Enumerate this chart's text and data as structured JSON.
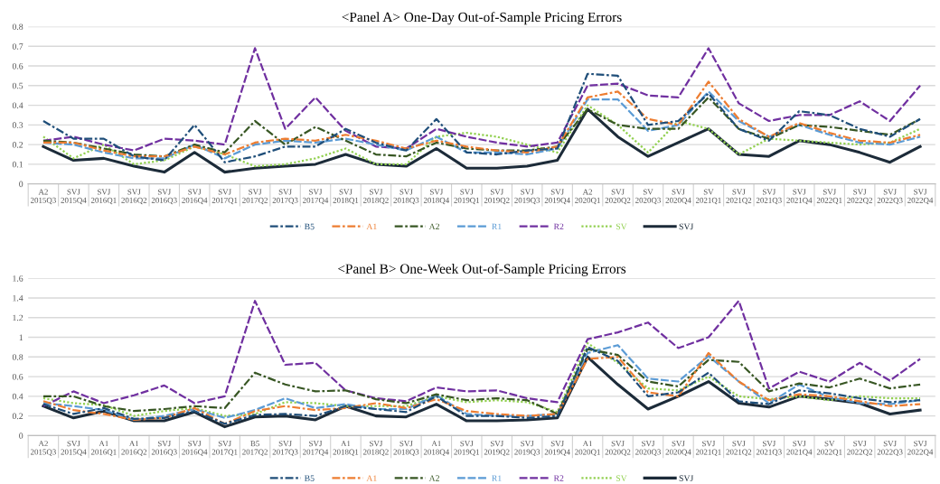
{
  "chart_data": [
    {
      "type": "line",
      "title": "<Panel A> One-Day Out-of-Sample Pricing Errors",
      "categories": [
        "A2\n2015Q3",
        "SVJ\n2015Q4",
        "SVJ\n2016Q1",
        "SVJ\n2016Q2",
        "SVJ\n2016Q3",
        "SVJ\n2016Q4",
        "SVJ\n2017Q1",
        "SVJ\n2017Q2",
        "SVJ\n2017Q3",
        "SVJ\n2017Q4",
        "SVJ\n2018Q1",
        "SVJ\n2018Q2",
        "SVJ\n2018Q3",
        "SVJ\n2018Q4",
        "SVJ\n2019Q1",
        "SVJ\n2019Q2",
        "SVJ\n2019Q3",
        "SVJ\n2019Q4",
        "A2\n2020Q1",
        "SVJ\n2020Q2",
        "SV\n2020Q3",
        "SVJ\n2020Q4",
        "SV\n2021Q1",
        "SVJ\n2021Q2",
        "SVJ\n2021Q3",
        "SVJ\n2021Q4",
        "SVJ\n2022Q1",
        "SVJ\n2022Q2",
        "SVJ\n2022Q3",
        "SVJ\n2022Q4"
      ],
      "ylim": [
        0,
        0.8
      ],
      "yticks": [
        0,
        0.1,
        0.2,
        0.3,
        0.4,
        0.5,
        0.6,
        0.7,
        0.8
      ],
      "grid": "y",
      "legend": "bottom",
      "series": [
        {
          "name": "B5",
          "color": "#1f4e79",
          "line_style": "dashdot",
          "values": [
            0.32,
            0.23,
            0.23,
            0.14,
            0.12,
            0.3,
            0.11,
            0.14,
            0.19,
            0.19,
            0.28,
            0.21,
            0.17,
            0.33,
            0.16,
            0.15,
            0.17,
            0.18,
            0.56,
            0.55,
            0.3,
            0.32,
            0.46,
            0.28,
            0.22,
            0.37,
            0.35,
            0.28,
            0.24,
            0.33
          ]
        },
        {
          "name": "A1",
          "color": "#ed7d31",
          "line_style": "dashdot",
          "values": [
            0.21,
            0.21,
            0.17,
            0.14,
            0.14,
            0.19,
            0.15,
            0.21,
            0.23,
            0.22,
            0.25,
            0.22,
            0.18,
            0.22,
            0.19,
            0.17,
            0.16,
            0.19,
            0.44,
            0.47,
            0.33,
            0.3,
            0.52,
            0.33,
            0.24,
            0.31,
            0.26,
            0.22,
            0.21,
            0.25
          ]
        },
        {
          "name": "A2",
          "color": "#375623",
          "line_style": "dashdot",
          "values": [
            0.22,
            0.21,
            0.18,
            0.15,
            0.14,
            0.2,
            0.16,
            0.32,
            0.2,
            0.29,
            0.22,
            0.15,
            0.14,
            0.21,
            0.18,
            0.17,
            0.17,
            0.19,
            0.38,
            0.3,
            0.28,
            0.28,
            0.44,
            0.28,
            0.23,
            0.3,
            0.29,
            0.27,
            0.25,
            0.33
          ]
        },
        {
          "name": "R1",
          "color": "#5b9bd5",
          "line_style": "dashed",
          "values": [
            0.21,
            0.2,
            0.16,
            0.13,
            0.13,
            0.2,
            0.13,
            0.2,
            0.22,
            0.21,
            0.23,
            0.2,
            0.17,
            0.24,
            0.16,
            0.16,
            0.15,
            0.18,
            0.43,
            0.43,
            0.27,
            0.3,
            0.47,
            0.32,
            0.24,
            0.3,
            0.25,
            0.21,
            0.2,
            0.24
          ]
        },
        {
          "name": "R2",
          "color": "#7030a0",
          "line_style": "dashed",
          "values": [
            0.22,
            0.24,
            0.2,
            0.17,
            0.23,
            0.22,
            0.2,
            0.69,
            0.28,
            0.44,
            0.27,
            0.19,
            0.18,
            0.28,
            0.24,
            0.21,
            0.19,
            0.21,
            0.5,
            0.51,
            0.45,
            0.44,
            0.69,
            0.41,
            0.32,
            0.35,
            0.35,
            0.42,
            0.32,
            0.5
          ]
        },
        {
          "name": "SV",
          "color": "#92d050",
          "line_style": "dotted",
          "values": [
            0.24,
            0.13,
            0.2,
            0.1,
            0.12,
            0.19,
            0.15,
            0.09,
            0.1,
            0.13,
            0.18,
            0.1,
            0.1,
            0.24,
            0.26,
            0.24,
            0.2,
            0.16,
            0.4,
            0.3,
            0.16,
            0.32,
            0.28,
            0.15,
            0.23,
            0.22,
            0.21,
            0.2,
            0.21,
            0.28
          ]
        },
        {
          "name": "SVJ",
          "color": "#1c2b39",
          "line_style": "solid",
          "values": [
            0.19,
            0.12,
            0.13,
            0.09,
            0.06,
            0.16,
            0.06,
            0.08,
            0.09,
            0.1,
            0.15,
            0.1,
            0.09,
            0.18,
            0.08,
            0.08,
            0.09,
            0.12,
            0.38,
            0.24,
            0.14,
            0.21,
            0.28,
            0.15,
            0.14,
            0.22,
            0.2,
            0.16,
            0.11,
            0.19
          ]
        }
      ]
    },
    {
      "type": "line",
      "title": "<Panel B> One-Week Out-of-Sample Pricing Errors",
      "categories": [
        "A2\n2015Q3",
        "SVJ\n2015Q4",
        "A1\n2016Q1",
        "A1\n2016Q2",
        "SVJ\n2016Q3",
        "SVJ\n2016Q4",
        "SVJ\n2017Q1",
        "B5\n2017Q2",
        "SVJ\n2017Q3",
        "SVJ\n2017Q4",
        "A1\n2018Q1",
        "SVJ\n2018Q2",
        "SVJ\n2018Q3",
        "A1\n2018Q4",
        "SVJ\n2019Q1",
        "SVJ\n2019Q2",
        "SVJ\n2019Q3",
        "SVJ\n2019Q4",
        "A1\n2020Q1",
        "SVJ\n2020Q2",
        "SVJ\n2020Q3",
        "SVJ\n2020Q4",
        "SVJ\n2021Q1",
        "SVJ\n2021Q2",
        "SVJ\n2021Q3",
        "SVJ\n2021Q4",
        "SV\n2022Q1",
        "SVJ\n2022Q2",
        "SVJ\n2022Q3",
        "SVJ\n2022Q4"
      ],
      "ylim": [
        0,
        1.6
      ],
      "yticks": [
        0,
        0.2,
        0.4,
        0.6,
        0.8,
        1,
        1.2,
        1.4,
        1.6
      ],
      "grid": "y",
      "legend": "bottom",
      "series": [
        {
          "name": "B5",
          "color": "#1f4e79",
          "line_style": "dashdot",
          "values": [
            0.32,
            0.22,
            0.28,
            0.17,
            0.18,
            0.25,
            0.12,
            0.21,
            0.22,
            0.2,
            0.3,
            0.27,
            0.24,
            0.4,
            0.2,
            0.2,
            0.18,
            0.2,
            0.9,
            0.76,
            0.4,
            0.44,
            0.64,
            0.35,
            0.32,
            0.46,
            0.43,
            0.38,
            0.34,
            0.36
          ]
        },
        {
          "name": "A1",
          "color": "#ed7d31",
          "line_style": "dashdot",
          "values": [
            0.35,
            0.26,
            0.22,
            0.16,
            0.18,
            0.28,
            0.12,
            0.25,
            0.3,
            0.26,
            0.28,
            0.33,
            0.28,
            0.37,
            0.25,
            0.22,
            0.2,
            0.22,
            0.78,
            0.8,
            0.44,
            0.4,
            0.84,
            0.55,
            0.36,
            0.42,
            0.4,
            0.35,
            0.3,
            0.32
          ]
        },
        {
          "name": "A2",
          "color": "#375623",
          "line_style": "dashdot",
          "values": [
            0.4,
            0.4,
            0.3,
            0.25,
            0.27,
            0.3,
            0.28,
            0.64,
            0.52,
            0.45,
            0.46,
            0.37,
            0.33,
            0.42,
            0.36,
            0.38,
            0.36,
            0.22,
            0.88,
            0.82,
            0.55,
            0.5,
            0.77,
            0.75,
            0.45,
            0.53,
            0.49,
            0.58,
            0.48,
            0.52
          ]
        },
        {
          "name": "R1",
          "color": "#5b9bd5",
          "line_style": "dashed",
          "values": [
            0.33,
            0.3,
            0.26,
            0.16,
            0.2,
            0.27,
            0.18,
            0.26,
            0.38,
            0.28,
            0.32,
            0.27,
            0.27,
            0.41,
            0.22,
            0.2,
            0.2,
            0.22,
            0.84,
            0.92,
            0.58,
            0.55,
            0.81,
            0.55,
            0.33,
            0.52,
            0.39,
            0.33,
            0.32,
            0.36
          ]
        },
        {
          "name": "R2",
          "color": "#7030a0",
          "line_style": "dashed",
          "values": [
            0.3,
            0.45,
            0.33,
            0.41,
            0.51,
            0.33,
            0.4,
            1.37,
            0.72,
            0.74,
            0.46,
            0.38,
            0.35,
            0.49,
            0.45,
            0.46,
            0.38,
            0.34,
            0.98,
            1.05,
            1.15,
            0.89,
            1.0,
            1.37,
            0.48,
            0.65,
            0.55,
            0.74,
            0.56,
            0.78
          ]
        },
        {
          "name": "SV",
          "color": "#92d050",
          "line_style": "dotted",
          "values": [
            0.38,
            0.33,
            0.31,
            0.2,
            0.25,
            0.28,
            0.2,
            0.22,
            0.34,
            0.33,
            0.3,
            0.3,
            0.3,
            0.4,
            0.34,
            0.36,
            0.34,
            0.24,
            0.94,
            0.74,
            0.48,
            0.46,
            0.6,
            0.4,
            0.37,
            0.4,
            0.36,
            0.4,
            0.38,
            0.38
          ]
        },
        {
          "name": "SVJ",
          "color": "#1c2b39",
          "line_style": "solid",
          "values": [
            0.3,
            0.18,
            0.25,
            0.15,
            0.15,
            0.24,
            0.09,
            0.19,
            0.2,
            0.16,
            0.3,
            0.2,
            0.19,
            0.32,
            0.15,
            0.15,
            0.16,
            0.18,
            0.8,
            0.52,
            0.27,
            0.4,
            0.55,
            0.33,
            0.29,
            0.4,
            0.37,
            0.33,
            0.22,
            0.26
          ]
        }
      ]
    }
  ]
}
